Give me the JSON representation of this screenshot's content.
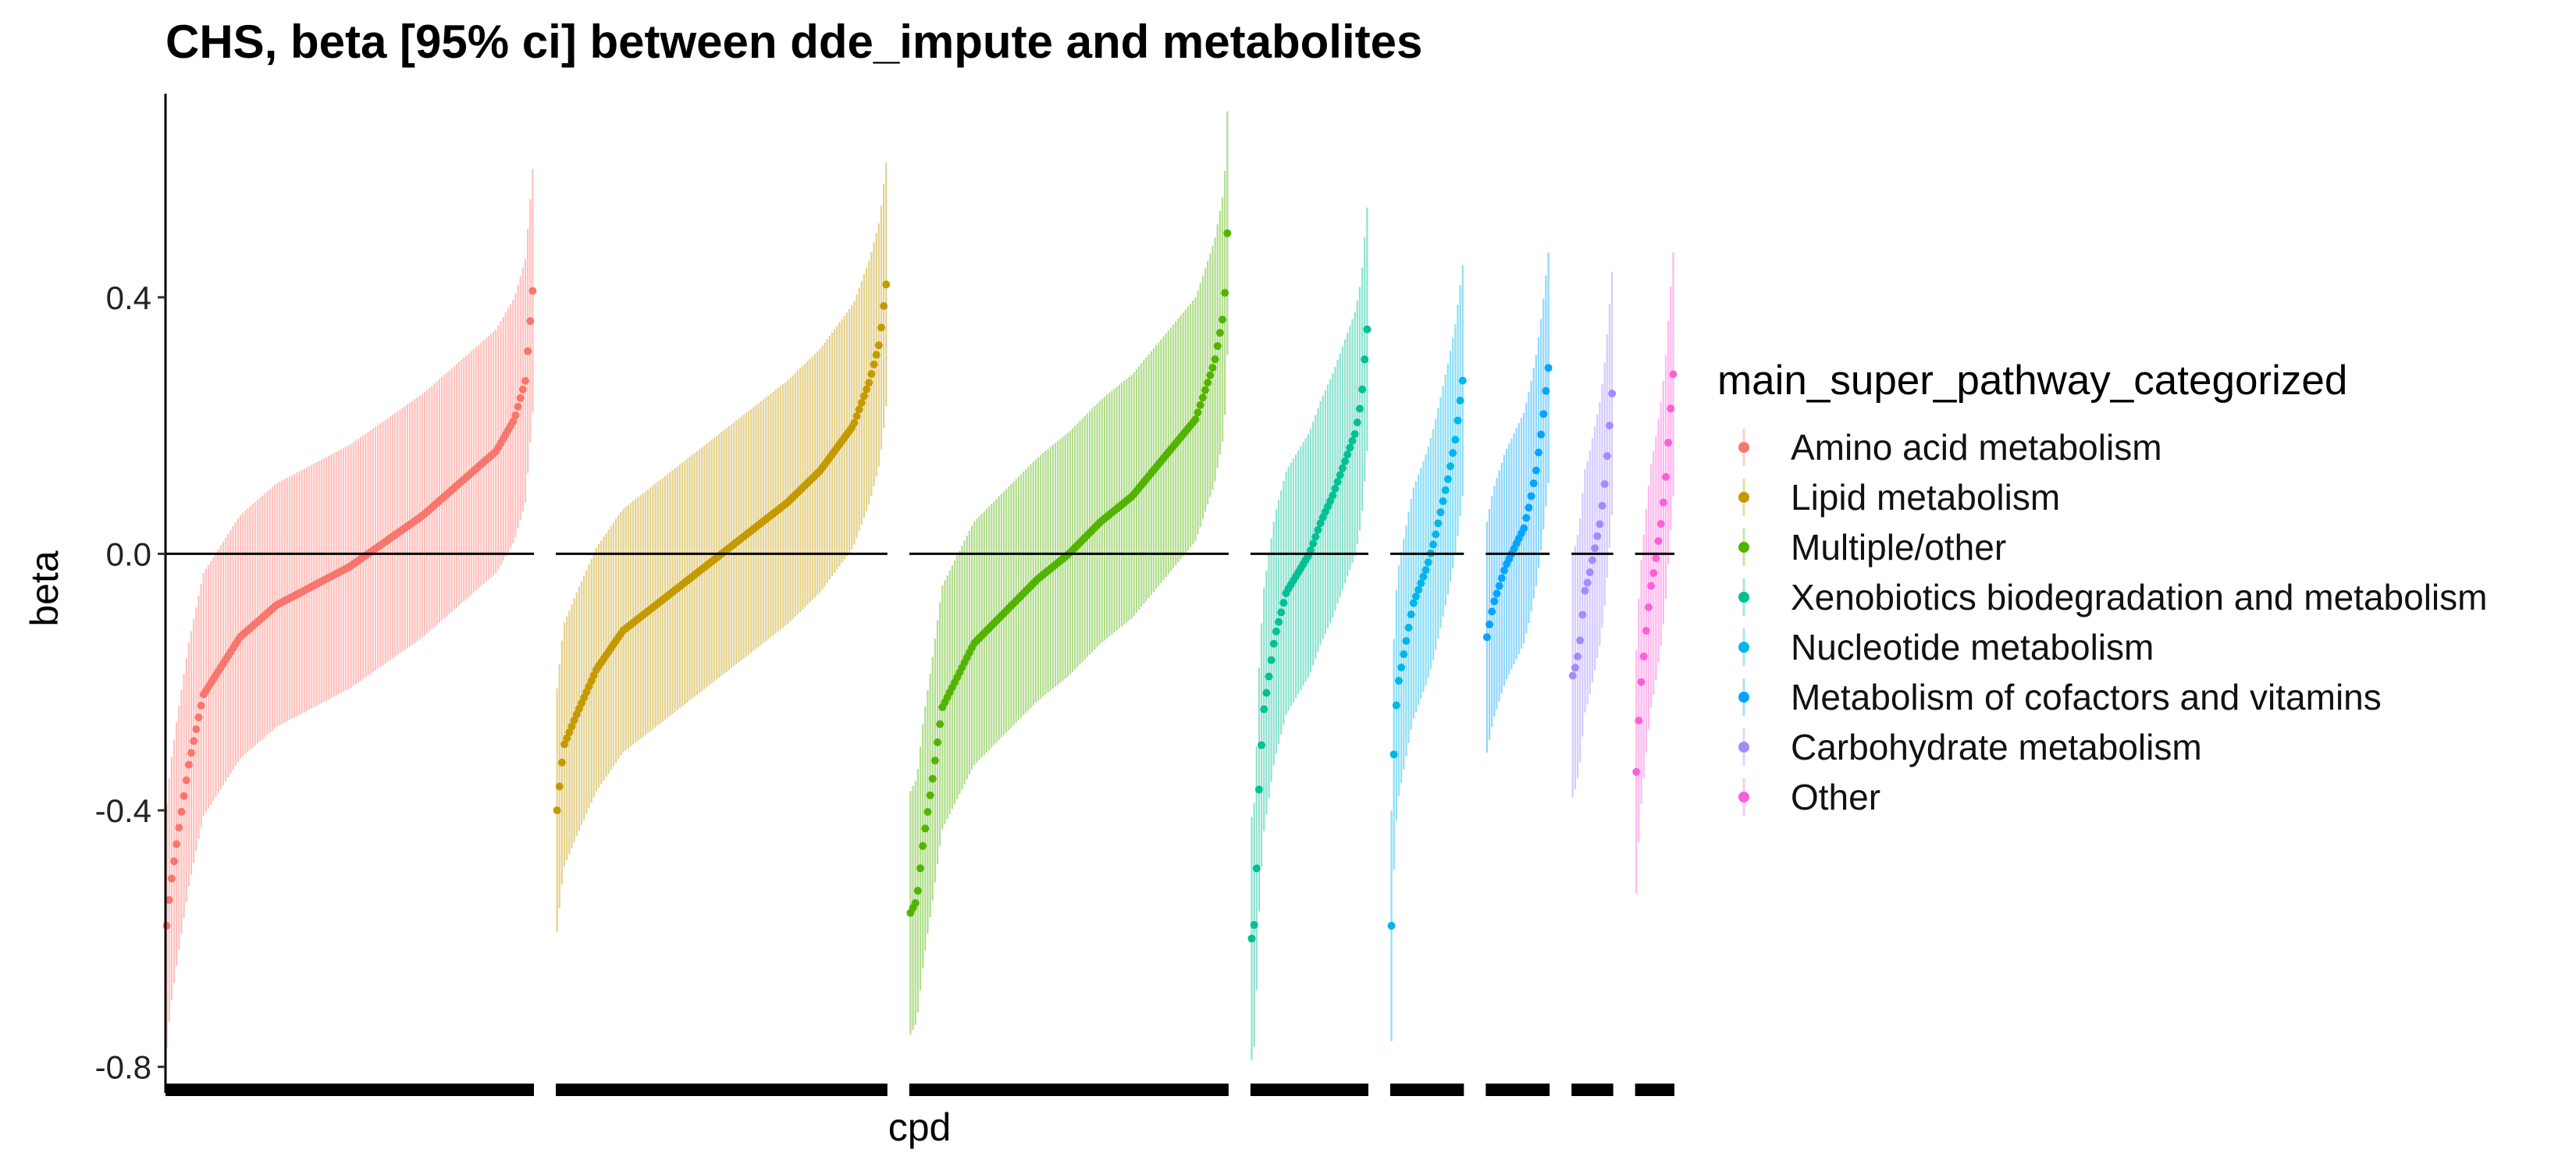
{
  "chart_data": {
    "type": "scatter",
    "title": "CHS, beta [95% ci] between dde_impute and metabolites",
    "xlabel": "cpd",
    "ylabel": "beta",
    "ylim": [
      -0.82,
      0.72
    ],
    "yticks": [
      0.4,
      0.0,
      -0.4,
      -0.8
    ],
    "ytick_labels": [
      "0.4",
      "0.0",
      "-0.4",
      "-0.8"
    ],
    "reference_line_y": 0.0,
    "legend": {
      "title": "main_super_pathway_categorized",
      "placement": "right"
    },
    "series": [
      {
        "name": "Amino acid metabolism",
        "color": "#F8766D",
        "n": 150,
        "beta_quantiles": [
          [
            0,
            -0.58
          ],
          [
            0.01,
            -0.52
          ],
          [
            0.03,
            -0.44
          ],
          [
            0.06,
            -0.33
          ],
          [
            0.1,
            -0.22
          ],
          [
            0.2,
            -0.13
          ],
          [
            0.3,
            -0.08
          ],
          [
            0.4,
            -0.05
          ],
          [
            0.5,
            -0.02
          ],
          [
            0.6,
            0.02
          ],
          [
            0.7,
            0.06
          ],
          [
            0.8,
            0.11
          ],
          [
            0.9,
            0.16
          ],
          [
            0.95,
            0.21
          ],
          [
            0.98,
            0.27
          ],
          [
            1,
            0.41
          ]
        ],
        "ci_halfwidth": 0.19
      },
      {
        "name": "Lipid metabolism",
        "color": "#C49A00",
        "n": 135,
        "beta_quantiles": [
          [
            0,
            -0.4
          ],
          [
            0.02,
            -0.3
          ],
          [
            0.06,
            -0.25
          ],
          [
            0.12,
            -0.18
          ],
          [
            0.2,
            -0.12
          ],
          [
            0.3,
            -0.08
          ],
          [
            0.4,
            -0.04
          ],
          [
            0.5,
            0.0
          ],
          [
            0.6,
            0.04
          ],
          [
            0.7,
            0.08
          ],
          [
            0.8,
            0.13
          ],
          [
            0.9,
            0.2
          ],
          [
            0.95,
            0.27
          ],
          [
            0.98,
            0.33
          ],
          [
            1,
            0.42
          ]
        ],
        "ci_halfwidth": 0.19
      },
      {
        "name": "Multiple/other",
        "color": "#53B400",
        "n": 130,
        "beta_quantiles": [
          [
            0,
            -0.56
          ],
          [
            0.02,
            -0.54
          ],
          [
            0.04,
            -0.45
          ],
          [
            0.07,
            -0.35
          ],
          [
            0.1,
            -0.24
          ],
          [
            0.2,
            -0.14
          ],
          [
            0.3,
            -0.09
          ],
          [
            0.4,
            -0.04
          ],
          [
            0.5,
            0.0
          ],
          [
            0.6,
            0.05
          ],
          [
            0.7,
            0.09
          ],
          [
            0.8,
            0.15
          ],
          [
            0.9,
            0.21
          ],
          [
            0.96,
            0.3
          ],
          [
            0.99,
            0.38
          ],
          [
            1,
            0.5
          ]
        ],
        "ci_halfwidth": 0.19
      },
      {
        "name": "Xenobiotics biodegradation and metabolism",
        "color": "#00C094",
        "n": 48,
        "beta_quantiles": [
          [
            0,
            -0.6
          ],
          [
            0.03,
            -0.57
          ],
          [
            0.06,
            -0.38
          ],
          [
            0.1,
            -0.25
          ],
          [
            0.2,
            -0.13
          ],
          [
            0.3,
            -0.06
          ],
          [
            0.4,
            -0.03
          ],
          [
            0.5,
            0.0
          ],
          [
            0.6,
            0.05
          ],
          [
            0.7,
            0.09
          ],
          [
            0.8,
            0.14
          ],
          [
            0.9,
            0.19
          ],
          [
            0.95,
            0.24
          ],
          [
            1,
            0.35
          ]
        ],
        "ci_halfwidth": 0.19
      },
      {
        "name": "Nucleotide metabolism",
        "color": "#00B6EB",
        "n": 30,
        "beta_quantiles": [
          [
            0,
            -0.58
          ],
          [
            0.04,
            -0.27
          ],
          [
            0.1,
            -0.2
          ],
          [
            0.2,
            -0.14
          ],
          [
            0.3,
            -0.08
          ],
          [
            0.4,
            -0.05
          ],
          [
            0.5,
            -0.02
          ],
          [
            0.6,
            0.02
          ],
          [
            0.7,
            0.07
          ],
          [
            0.8,
            0.12
          ],
          [
            0.9,
            0.18
          ],
          [
            1,
            0.27
          ]
        ],
        "ci_halfwidth": 0.18
      },
      {
        "name": "Metabolism of cofactors and vitamins",
        "color": "#06A4FF",
        "n": 26,
        "beta_quantiles": [
          [
            0,
            -0.13
          ],
          [
            0.1,
            -0.08
          ],
          [
            0.2,
            -0.05
          ],
          [
            0.3,
            -0.02
          ],
          [
            0.4,
            0.0
          ],
          [
            0.5,
            0.02
          ],
          [
            0.6,
            0.04
          ],
          [
            0.7,
            0.08
          ],
          [
            0.8,
            0.13
          ],
          [
            0.9,
            0.2
          ],
          [
            1,
            0.29
          ]
        ],
        "ci_halfwidth": 0.18
      },
      {
        "name": "Carbohydrate metabolism",
        "color": "#A58AFF",
        "n": 17,
        "beta_quantiles": [
          [
            0,
            -0.19
          ],
          [
            0.1,
            -0.17
          ],
          [
            0.2,
            -0.13
          ],
          [
            0.3,
            -0.06
          ],
          [
            0.4,
            -0.04
          ],
          [
            0.5,
            -0.01
          ],
          [
            0.6,
            0.02
          ],
          [
            0.7,
            0.05
          ],
          [
            0.8,
            0.1
          ],
          [
            0.9,
            0.17
          ],
          [
            1,
            0.25
          ]
        ],
        "ci_halfwidth": 0.19
      },
      {
        "name": "Other",
        "color": "#FB61D7",
        "n": 16,
        "beta_quantiles": [
          [
            0,
            -0.34
          ],
          [
            0.1,
            -0.22
          ],
          [
            0.2,
            -0.16
          ],
          [
            0.3,
            -0.1
          ],
          [
            0.4,
            -0.05
          ],
          [
            0.5,
            -0.02
          ],
          [
            0.6,
            0.02
          ],
          [
            0.7,
            0.06
          ],
          [
            0.8,
            0.12
          ],
          [
            0.9,
            0.2
          ],
          [
            1,
            0.28
          ]
        ],
        "ci_halfwidth": 0.19
      }
    ]
  }
}
